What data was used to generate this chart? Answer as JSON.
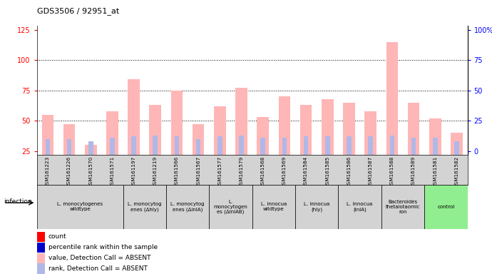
{
  "title": "GDS3506 / 92951_at",
  "samples": [
    "GSM161223",
    "GSM161226",
    "GSM161570",
    "GSM161571",
    "GSM161197",
    "GSM161219",
    "GSM161566",
    "GSM161567",
    "GSM161577",
    "GSM161579",
    "GSM161568",
    "GSM161569",
    "GSM161584",
    "GSM161585",
    "GSM161586",
    "GSM161587",
    "GSM161588",
    "GSM161589",
    "GSM161581",
    "GSM161582"
  ],
  "values": [
    55,
    47,
    30,
    58,
    84,
    63,
    75,
    47,
    62,
    77,
    53,
    70,
    63,
    68,
    65,
    58,
    115,
    65,
    52,
    40
  ],
  "ranks": [
    35,
    35,
    33,
    36,
    37,
    38,
    37,
    35,
    37,
    38,
    36,
    36,
    37,
    37,
    37,
    37,
    38,
    36,
    36,
    33
  ],
  "groups": [
    {
      "label": "L. monocytogenes\nwildtype",
      "count": 4,
      "color": "#d3d3d3"
    },
    {
      "label": "L. monocytog\nenes (Δhly)",
      "count": 2,
      "color": "#d3d3d3"
    },
    {
      "label": "L. monocytog\nenes (ΔinlA)",
      "count": 2,
      "color": "#d3d3d3"
    },
    {
      "label": "L.\nmonocytogen\nes (ΔinlAB)",
      "count": 2,
      "color": "#d3d3d3"
    },
    {
      "label": "L. innocua\nwildtype",
      "count": 2,
      "color": "#d3d3d3"
    },
    {
      "label": "L. innocua\n(hly)",
      "count": 2,
      "color": "#d3d3d3"
    },
    {
      "label": "L. innocua\n(inlA)",
      "count": 2,
      "color": "#d3d3d3"
    },
    {
      "label": "Bacteroides\nthetaiotaomic\nron",
      "count": 2,
      "color": "#d3d3d3"
    },
    {
      "label": "control",
      "count": 2,
      "color": "#90ee90"
    }
  ],
  "bar_color_absent": "#ffb6b6",
  "rank_color_absent": "#b0b8e8",
  "left_yticks": [
    25,
    50,
    75,
    100,
    125
  ],
  "ylim_left": [
    22,
    128
  ],
  "dotted_lines": [
    50,
    75,
    100
  ],
  "legend_items": [
    {
      "label": "count",
      "color": "#ff0000"
    },
    {
      "label": "percentile rank within the sample",
      "color": "#0000cd"
    },
    {
      "label": "value, Detection Call = ABSENT",
      "color": "#ffb6b6"
    },
    {
      "label": "rank, Detection Call = ABSENT",
      "color": "#b0b8e8"
    }
  ]
}
